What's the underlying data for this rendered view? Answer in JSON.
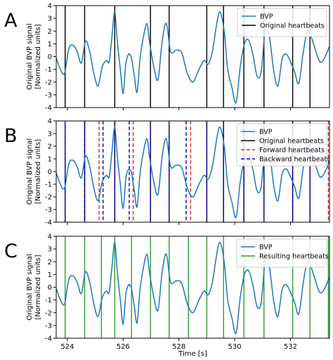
{
  "chart_data": [
    {
      "type": "line",
      "panel_label": "A",
      "ylabel_line1": "Original BVP signal",
      "ylabel_line2": "[Normalized units]",
      "xlabel": "",
      "xlim": [
        523.6,
        533.4
      ],
      "ylim": [
        -4,
        4
      ],
      "yticks": [
        -4,
        -3,
        -2,
        -1,
        0,
        1,
        2,
        3,
        4
      ],
      "xticks": [],
      "legend_position": "upper-right",
      "series": [
        {
          "name": "BVP",
          "kind": "signal",
          "color": "#1f77b4",
          "ref": "bvp"
        },
        {
          "name": "Original heartbeats",
          "kind": "vlines",
          "color": "#000000",
          "dash": "solid",
          "x": [
            523.92,
            524.62,
            525.7,
            526.98,
            527.65,
            529.0,
            529.6,
            530.33,
            531.05,
            532.08,
            532.7
          ]
        }
      ]
    },
    {
      "type": "line",
      "panel_label": "B",
      "ylabel_line1": "Original BVP signal",
      "ylabel_line2": "[Normalized units]",
      "xlabel": "",
      "xlim": [
        523.6,
        533.4
      ],
      "ylim": [
        -4,
        4
      ],
      "yticks": [
        -4,
        -3,
        -2,
        -1,
        0,
        1,
        2,
        3,
        4
      ],
      "xticks": [],
      "legend_position": "upper-right",
      "series": [
        {
          "name": "BVP",
          "kind": "signal",
          "color": "#1f77b4",
          "ref": "bvp"
        },
        {
          "name": "Original heartbeats",
          "kind": "vlines",
          "color": "#000000",
          "dash": "solid",
          "x": [
            523.92,
            524.62,
            525.7,
            526.98,
            527.65,
            529.0,
            529.6,
            530.33,
            531.05,
            532.08,
            532.7
          ]
        },
        {
          "name": "Forward heartbeats",
          "kind": "vlines",
          "color": "#d62728",
          "dash": "dashed",
          "x": [
            523.92,
            524.62,
            525.14,
            525.7,
            526.36,
            526.98,
            527.65,
            528.42,
            529.0,
            529.6,
            530.33,
            531.05,
            532.08,
            532.7,
            533.36
          ]
        },
        {
          "name": "Backward heartbeats",
          "kind": "vlines",
          "color": "#0000cc",
          "dash": "dashed",
          "x": [
            523.92,
            524.62,
            525.28,
            525.7,
            526.22,
            526.98,
            527.65,
            528.26,
            529.0,
            529.6,
            530.33,
            531.05,
            532.08,
            532.7
          ]
        }
      ]
    },
    {
      "type": "line",
      "panel_label": "C",
      "ylabel_line1": "Original BVP signal",
      "ylabel_line2": "[Normalized units]",
      "xlabel": "Time [s]",
      "xlim": [
        523.6,
        533.4
      ],
      "ylim": [
        -4,
        4
      ],
      "yticks": [
        -4,
        -3,
        -2,
        -1,
        0,
        1,
        2,
        3,
        4
      ],
      "xticks": [
        524,
        526,
        528,
        530,
        532
      ],
      "legend_position": "upper-right",
      "series": [
        {
          "name": "BVP",
          "kind": "signal",
          "color": "#1f77b4",
          "ref": "bvp"
        },
        {
          "name": "Resulting heartbeats",
          "kind": "vlines",
          "color": "#2ca02c",
          "dash": "solid",
          "x": [
            523.92,
            524.62,
            525.22,
            525.7,
            526.3,
            526.98,
            527.65,
            528.34,
            529.0,
            529.6,
            530.33,
            531.05,
            532.08,
            532.7,
            533.36
          ]
        }
      ]
    }
  ],
  "signal": {
    "bvp_x": [
      523.6,
      523.75,
      523.9,
      524.05,
      524.2,
      524.35,
      524.5,
      524.65,
      524.8,
      524.95,
      525.1,
      525.25,
      525.4,
      525.5,
      525.6,
      525.7,
      525.8,
      525.9,
      526.0,
      526.1,
      526.2,
      526.25,
      526.3,
      526.4,
      526.5,
      526.6,
      526.7,
      526.85,
      526.95,
      527.1,
      527.25,
      527.4,
      527.55,
      527.7,
      527.9,
      528.1,
      528.3,
      528.5,
      528.7,
      528.9,
      529.05,
      529.2,
      529.35,
      529.45,
      529.55,
      529.65,
      529.75,
      529.9,
      530.05,
      530.2,
      530.35,
      530.5,
      530.65,
      530.8,
      530.95,
      531.1,
      531.25,
      531.4,
      531.55,
      531.7,
      531.85,
      532.0,
      532.15,
      532.3,
      532.45,
      532.6,
      532.75,
      532.9,
      533.05,
      533.2,
      533.4
    ],
    "bvp_y": [
      -0.1,
      -1.0,
      -1.3,
      0.6,
      0.9,
      0.4,
      -0.5,
      1.2,
      0.4,
      -1.3,
      -2.3,
      -0.8,
      -0.3,
      -0.4,
      1.6,
      3.5,
      1.0,
      -1.0,
      -2.9,
      -0.5,
      0.2,
      0.1,
      -0.1,
      -1.5,
      -2.8,
      -0.3,
      1.2,
      2.6,
      1.1,
      -0.8,
      -1.8,
      1.2,
      2.6,
      0.4,
      0.5,
      0.3,
      -1.3,
      -2.0,
      -1.1,
      -0.3,
      -0.6,
      0.4,
      2.5,
      3.5,
      3.0,
      1.5,
      -1.0,
      -2.4,
      -3.6,
      -0.8,
      1.0,
      1.3,
      0.2,
      -1.5,
      -1.2,
      2.2,
      1.5,
      -1.1,
      -2.3,
      -0.2,
      0.2,
      -0.4,
      -1.2,
      -2.1,
      0.2,
      2.0,
      1.5,
      0.5,
      -0.4,
      -0.2,
      0.8
    ]
  },
  "legend_labels": {
    "bvp": "BVP",
    "original": "Original heartbeats",
    "forward": "Forward heartbeats",
    "backward": "Backward heartbeats",
    "resulting": "Resulting heartbeats"
  },
  "colors": {
    "bvp": "#1f77b4",
    "original": "#000000",
    "forward": "#d62728",
    "backward": "#0000cc",
    "resulting": "#2ca02c",
    "axes": "#000000"
  }
}
